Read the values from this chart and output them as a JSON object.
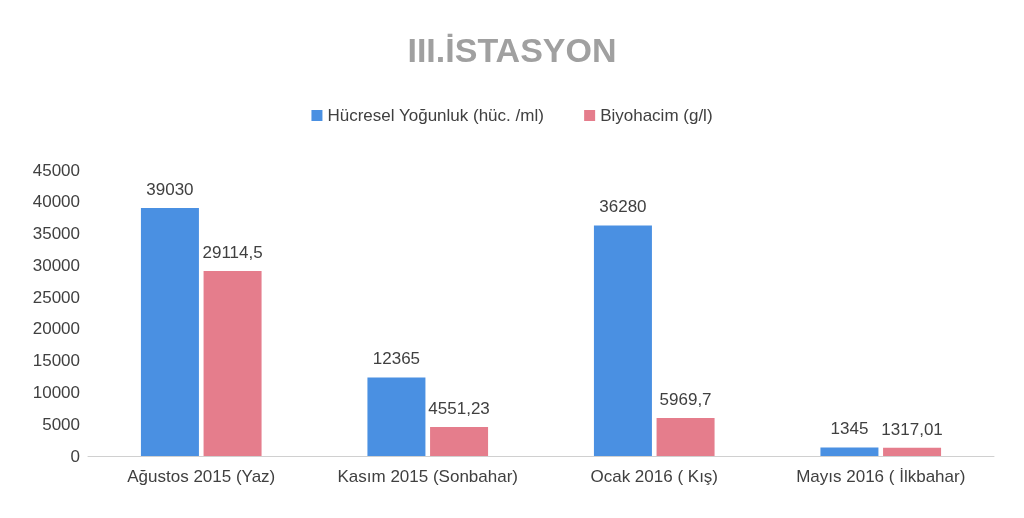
{
  "chart_data": {
    "type": "bar",
    "title": "III.İSTASYON",
    "categories": [
      "Ağustos 2015 (Yaz)",
      "Kasım 2015 (Sonbahar)",
      "Ocak 2016 ( Kış)",
      "Mayıs 2016 ( İlkbahar)"
    ],
    "series": [
      {
        "name": "Hücresel Yoğunluk (hüc. /ml)",
        "color": "#4a90e2",
        "values": [
          39030,
          12365,
          36280,
          1345
        ],
        "value_labels": [
          "39030",
          "12365",
          "36280",
          "1345"
        ]
      },
      {
        "name": "Biyohacim (g/l)",
        "color": "#e57d8c",
        "values": [
          29114.5,
          4551.23,
          5969.7,
          1317.01
        ],
        "value_labels": [
          "29114,5",
          "4551,23",
          "5969,7",
          "1317,01"
        ]
      }
    ],
    "ylim": [
      0,
      45000
    ],
    "yticks": [
      0,
      5000,
      10000,
      15000,
      20000,
      25000,
      30000,
      35000,
      40000,
      45000
    ],
    "grid": false,
    "legend": "top"
  }
}
